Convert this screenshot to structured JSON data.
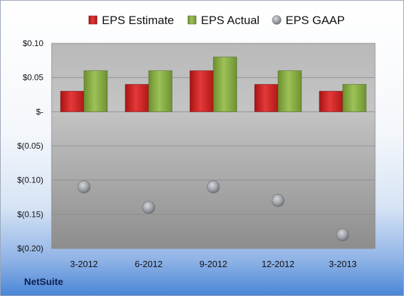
{
  "chart_data": {
    "type": "bar",
    "title": "",
    "xlabel": "",
    "ylabel": "",
    "categories": [
      "3-2012",
      "6-2012",
      "9-2012",
      "12-2012",
      "3-2013"
    ],
    "series": [
      {
        "name": "EPS Estimate",
        "kind": "bar",
        "color": "#d42a2a",
        "values": [
          0.03,
          0.04,
          0.06,
          0.04,
          0.03
        ]
      },
      {
        "name": "EPS Actual",
        "kind": "bar",
        "color": "#8bb04a",
        "values": [
          0.06,
          0.06,
          0.08,
          0.06,
          0.04
        ]
      },
      {
        "name": "EPS GAAP",
        "kind": "scatter",
        "color": "#9ea3a8",
        "values": [
          -0.11,
          -0.14,
          -0.11,
          -0.13,
          -0.18
        ]
      }
    ],
    "ylim": [
      -0.2,
      0.1
    ],
    "yticks": [
      0.1,
      0.05,
      0,
      -0.05,
      -0.1,
      -0.15,
      -0.2
    ],
    "ytick_labels": [
      "$0.10",
      "$0.05",
      "$-",
      "$(0.05)",
      "$(0.10)",
      "$(0.15)",
      "$(0.20)"
    ],
    "grid": true,
    "legend": "top-center"
  },
  "brand": "NetSuite"
}
